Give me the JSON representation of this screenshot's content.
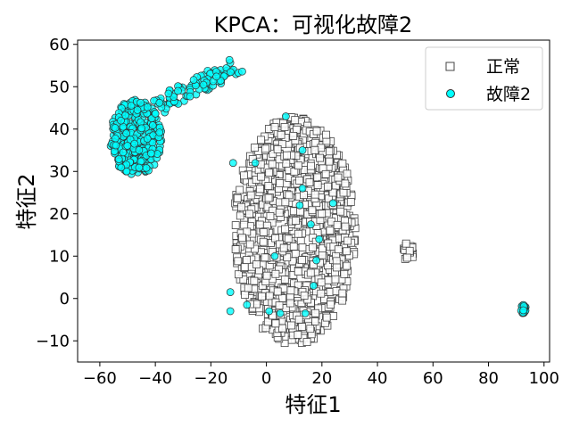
{
  "chart_data": {
    "type": "scatter",
    "title": "KPCA：可视化故障2",
    "xlabel": "特征1",
    "ylabel": "特征2",
    "xlim": [
      -68,
      102
    ],
    "ylim": [
      -15,
      61
    ],
    "xticks": [
      -60,
      -40,
      -20,
      0,
      20,
      40,
      60,
      80,
      100
    ],
    "yticks": [
      -10,
      0,
      10,
      20,
      30,
      40,
      50,
      60
    ],
    "xtick_labels": [
      "−60",
      "−40",
      "−20",
      "0",
      "20",
      "40",
      "60",
      "80",
      "100"
    ],
    "ytick_labels": [
      "−10",
      "0",
      "10",
      "20",
      "30",
      "40",
      "50",
      "60"
    ],
    "grid": false,
    "legend_position": "top-right",
    "series": [
      {
        "name": "正常",
        "marker": "square",
        "color": "#ffffff",
        "edge_color": "#444444",
        "clusters": [
          {
            "type": "ellipse",
            "cx": 10,
            "cy": 16,
            "rx": 22,
            "ry": 27,
            "count": 1100
          },
          {
            "type": "ellipse",
            "cx": 51,
            "cy": 11,
            "rx": 2,
            "ry": 2.5,
            "count": 18
          }
        ]
      },
      {
        "name": "故障2",
        "marker": "circle",
        "color": "#00ffff",
        "edge_color": "#333333",
        "clusters": [
          {
            "type": "ellipse",
            "cx": -47,
            "cy": 38,
            "rx": 9.5,
            "ry": 9,
            "count": 330
          },
          {
            "type": "line",
            "x0": -40,
            "y0": 45,
            "x1": -10,
            "y1": 55.5,
            "width": 4,
            "count": 90
          },
          {
            "type": "ellipse",
            "cx": 92.5,
            "cy": -2.5,
            "rx": 1,
            "ry": 1,
            "count": 25
          }
        ],
        "points": [
          {
            "x": 7,
            "y": 43
          },
          {
            "x": 13,
            "y": 35
          },
          {
            "x": -12,
            "y": 32
          },
          {
            "x": -4,
            "y": 32
          },
          {
            "x": 13,
            "y": 26
          },
          {
            "x": 12,
            "y": 22
          },
          {
            "x": 24,
            "y": 22.5
          },
          {
            "x": 16,
            "y": 17.5
          },
          {
            "x": 19,
            "y": 14
          },
          {
            "x": 3,
            "y": 10
          },
          {
            "x": 18,
            "y": 9
          },
          {
            "x": -13,
            "y": 1.5
          },
          {
            "x": 17,
            "y": 3
          },
          {
            "x": -7,
            "y": -1.5
          },
          {
            "x": -13,
            "y": -3
          },
          {
            "x": 1,
            "y": -3
          },
          {
            "x": 5,
            "y": -3.5
          },
          {
            "x": 14,
            "y": -3.5
          }
        ]
      }
    ]
  }
}
